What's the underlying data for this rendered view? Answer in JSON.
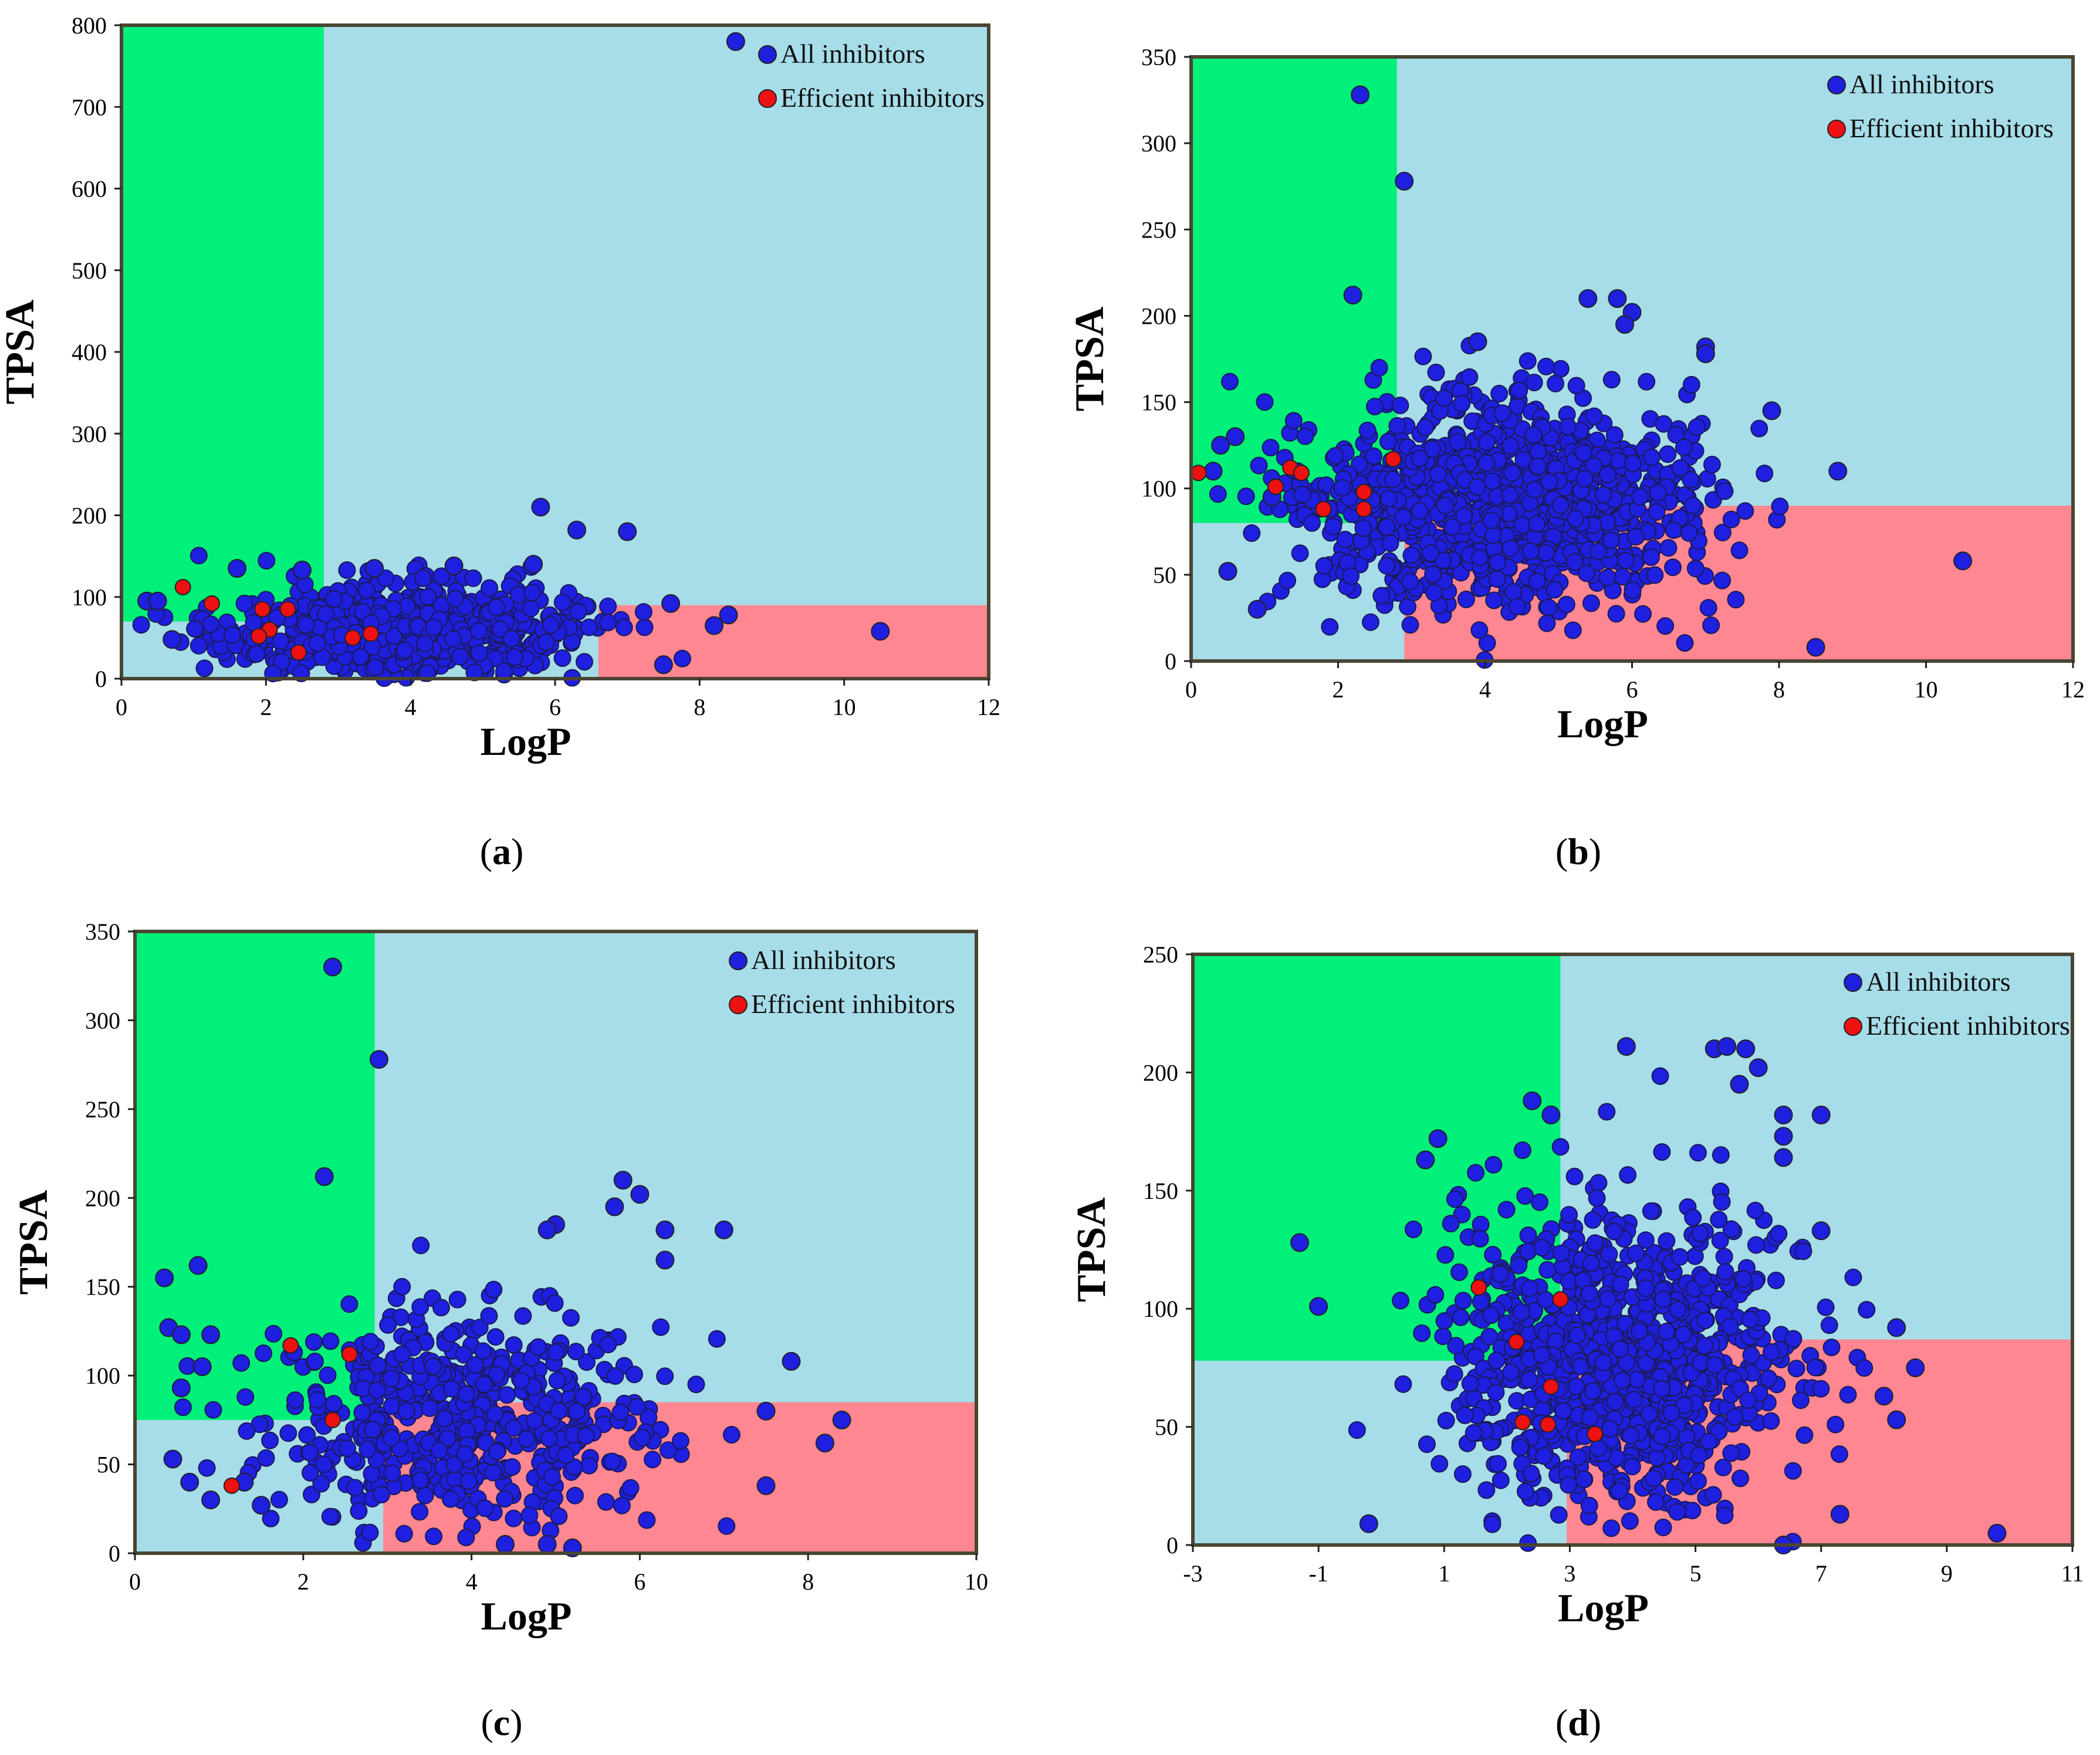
{
  "panel_labels": [
    "a",
    "b",
    "c",
    "d"
  ],
  "colors": {
    "oral_region": "#00f07a",
    "background_region": "#a6dde8",
    "poor_region": "#ff8792",
    "all_marker": "#1f1fe0",
    "efficient_marker": "#ee1111",
    "frame": "#4a4533"
  },
  "chart_data": [
    {
      "type": "scatter",
      "panel": "a",
      "xlabel": "LogP",
      "ylabel": "TPSA",
      "xlim": [
        0,
        12
      ],
      "ylim": [
        0,
        800
      ],
      "xticks": [
        0,
        2,
        4,
        6,
        8,
        10,
        12
      ],
      "yticks": [
        0,
        100,
        200,
        300,
        400,
        500,
        600,
        700,
        800
      ],
      "regions": [
        {
          "name": "green",
          "x": [
            0,
            2.8
          ],
          "y": [
            70,
            800
          ]
        },
        {
          "name": "red",
          "x": [
            6.6,
            12
          ],
          "y": [
            0,
            90
          ]
        }
      ],
      "legend": [
        "All inhibitors",
        "Efficient inhibitors"
      ],
      "cluster": {
        "n": 700,
        "x_mean": 3.9,
        "x_sd": 1.2,
        "y_mean": 55,
        "y_sd": 30
      },
      "series": [
        {
          "name": "All inhibitors",
          "points": [
            [
              8.5,
              780
            ],
            [
              5.8,
              210
            ],
            [
              6.3,
              182
            ],
            [
              7.0,
              180
            ],
            [
              10.5,
              58
            ],
            [
              8.2,
              65
            ],
            [
              8.4,
              78
            ],
            [
              7.5,
              17
            ],
            [
              7.6,
              92
            ],
            [
              0.35,
              95
            ],
            [
              0.5,
              95
            ],
            [
              0.7,
              48
            ],
            [
              4.6,
              138
            ],
            [
              5.7,
              140
            ],
            [
              1.6,
              135
            ],
            [
              2.5,
              133
            ],
            [
              3.5,
              135
            ]
          ]
        },
        {
          "name": "Efficient inhibitors",
          "points": [
            [
              0.85,
              112
            ],
            [
              1.25,
              92
            ],
            [
              1.95,
              85
            ],
            [
              2.3,
              85
            ],
            [
              2.05,
              60
            ],
            [
              1.9,
              52
            ],
            [
              2.45,
              32
            ],
            [
              3.2,
              50
            ],
            [
              3.45,
              55
            ]
          ]
        }
      ]
    },
    {
      "type": "scatter",
      "panel": "b",
      "xlabel": "LogP",
      "ylabel": "TPSA",
      "xlim": [
        0,
        12
      ],
      "ylim": [
        0,
        350
      ],
      "xticks": [
        0,
        2,
        4,
        6,
        8,
        10,
        12
      ],
      "yticks": [
        0,
        50,
        100,
        150,
        200,
        250,
        300,
        350
      ],
      "regions": [
        {
          "name": "green",
          "x": [
            0,
            2.8
          ],
          "y": [
            80,
            350
          ]
        },
        {
          "name": "red",
          "x": [
            2.9,
            12
          ],
          "y": [
            0,
            90
          ]
        }
      ],
      "legend": [
        "All inhibitors",
        "Efficient inhibitors"
      ],
      "cluster": {
        "n": 1100,
        "x_mean": 4.2,
        "x_sd": 1.35,
        "y_mean": 92,
        "y_sd": 28
      },
      "series": [
        {
          "name": "All inhibitors",
          "points": [
            [
              2.3,
              328
            ],
            [
              2.9,
              278
            ],
            [
              2.2,
              212
            ],
            [
              5.4,
              210
            ],
            [
              5.8,
              210
            ],
            [
              6.0,
              202
            ],
            [
              5.9,
              195
            ],
            [
              7.0,
              182
            ],
            [
              7.0,
              178
            ],
            [
              10.5,
              58
            ],
            [
              8.5,
              8
            ],
            [
              8.8,
              110
            ],
            [
              7.9,
              145
            ],
            [
              0.4,
              125
            ],
            [
              0.6,
              130
            ],
            [
              0.3,
              110
            ],
            [
              0.5,
              52
            ],
            [
              0.9,
              30
            ],
            [
              1.1,
              95
            ],
            [
              3.9,
              185
            ]
          ]
        },
        {
          "name": "Efficient inhibitors",
          "points": [
            [
              0.1,
              109
            ],
            [
              1.35,
              112
            ],
            [
              1.5,
              109
            ],
            [
              1.15,
              101
            ],
            [
              1.8,
              88
            ],
            [
              2.35,
              98
            ],
            [
              2.35,
              88
            ],
            [
              2.75,
              117
            ]
          ]
        }
      ]
    },
    {
      "type": "scatter",
      "panel": "c",
      "xlabel": "LogP",
      "ylabel": "TPSA",
      "xlim": [
        0,
        10
      ],
      "ylim": [
        0,
        350
      ],
      "xticks": [
        0,
        2,
        4,
        6,
        8,
        10
      ],
      "yticks": [
        0,
        50,
        100,
        150,
        200,
        250,
        300,
        350
      ],
      "regions": [
        {
          "name": "green",
          "x": [
            0,
            2.85
          ],
          "y": [
            75,
            350
          ]
        },
        {
          "name": "red",
          "x": [
            2.95,
            10
          ],
          "y": [
            0,
            85
          ]
        }
      ],
      "legend": [
        "All inhibitors",
        "Efficient inhibitors"
      ],
      "cluster": {
        "n": 550,
        "x_mean": 3.9,
        "x_sd": 1.15,
        "y_mean": 75,
        "y_sd": 30
      },
      "series": [
        {
          "name": "All inhibitors",
          "points": [
            [
              2.35,
              330
            ],
            [
              2.9,
              278
            ],
            [
              2.25,
              212
            ],
            [
              5.8,
              210
            ],
            [
              6.0,
              202
            ],
            [
              5.7,
              195
            ],
            [
              6.3,
              182
            ],
            [
              7.0,
              182
            ],
            [
              6.3,
              165
            ],
            [
              5.0,
              185
            ],
            [
              4.9,
              182
            ],
            [
              0.35,
              155
            ],
            [
              0.75,
              162
            ],
            [
              0.4,
              127
            ],
            [
              0.55,
              123
            ],
            [
              0.9,
              123
            ],
            [
              0.8,
              105
            ],
            [
              0.55,
              93
            ],
            [
              0.45,
              53
            ],
            [
              0.65,
              40
            ],
            [
              0.9,
              30
            ],
            [
              1.3,
              40
            ],
            [
              1.5,
              27
            ],
            [
              8.4,
              75
            ],
            [
              7.8,
              108
            ],
            [
              7.5,
              80
            ],
            [
              7.5,
              38
            ],
            [
              8.2,
              62
            ],
            [
              4.4,
              5
            ],
            [
              4.9,
              5
            ],
            [
              5.2,
              3
            ]
          ]
        },
        {
          "name": "Efficient inhibitors",
          "points": [
            [
              1.85,
              117
            ],
            [
              2.55,
              112
            ],
            [
              2.35,
              75
            ],
            [
              1.15,
              38
            ]
          ]
        }
      ]
    },
    {
      "type": "scatter",
      "panel": "d",
      "xlabel": "LogP",
      "ylabel": "TPSA",
      "xlim": [
        -3,
        11
      ],
      "ylim": [
        0,
        250
      ],
      "xticks": [
        -3,
        -1,
        1,
        3,
        5,
        7,
        9,
        11
      ],
      "yticks": [
        0,
        50,
        100,
        150,
        200,
        250
      ],
      "regions": [
        {
          "name": "green",
          "x": [
            -3,
            2.85
          ],
          "y": [
            78,
            250
          ]
        },
        {
          "name": "red",
          "x": [
            2.95,
            11
          ],
          "y": [
            0,
            87
          ]
        }
      ],
      "legend": [
        "All inhibitors",
        "Efficient inhibitors"
      ],
      "cluster": {
        "n": 1000,
        "x_mean": 3.8,
        "x_sd": 1.3,
        "y_mean": 78,
        "y_sd": 32
      },
      "series": [
        {
          "name": "All inhibitors",
          "points": [
            [
              -1.3,
              128
            ],
            [
              -1.0,
              101
            ],
            [
              -0.2,
              9
            ],
            [
              0.7,
              163
            ],
            [
              0.9,
              172
            ],
            [
              3.9,
              211
            ],
            [
              5.3,
              210
            ],
            [
              5.5,
              211
            ],
            [
              5.8,
              210
            ],
            [
              6.0,
              202
            ],
            [
              5.7,
              195
            ],
            [
              6.4,
              182
            ],
            [
              6.4,
              173
            ],
            [
              6.4,
              164
            ],
            [
              7.0,
              182
            ],
            [
              9.8,
              5
            ],
            [
              6.4,
              0
            ],
            [
              8.2,
              92
            ],
            [
              8.5,
              75
            ],
            [
              8.2,
              53
            ],
            [
              8.0,
              63
            ],
            [
              7.3,
              13
            ],
            [
              7.0,
              133
            ],
            [
              2.4,
              188
            ],
            [
              2.7,
              182
            ]
          ]
        },
        {
          "name": "Efficient inhibitors",
          "points": [
            [
              1.55,
              109
            ],
            [
              2.85,
              104
            ],
            [
              2.15,
              86
            ],
            [
              2.7,
              67
            ],
            [
              2.25,
              52
            ],
            [
              2.65,
              51
            ],
            [
              3.4,
              47
            ]
          ]
        }
      ]
    }
  ]
}
